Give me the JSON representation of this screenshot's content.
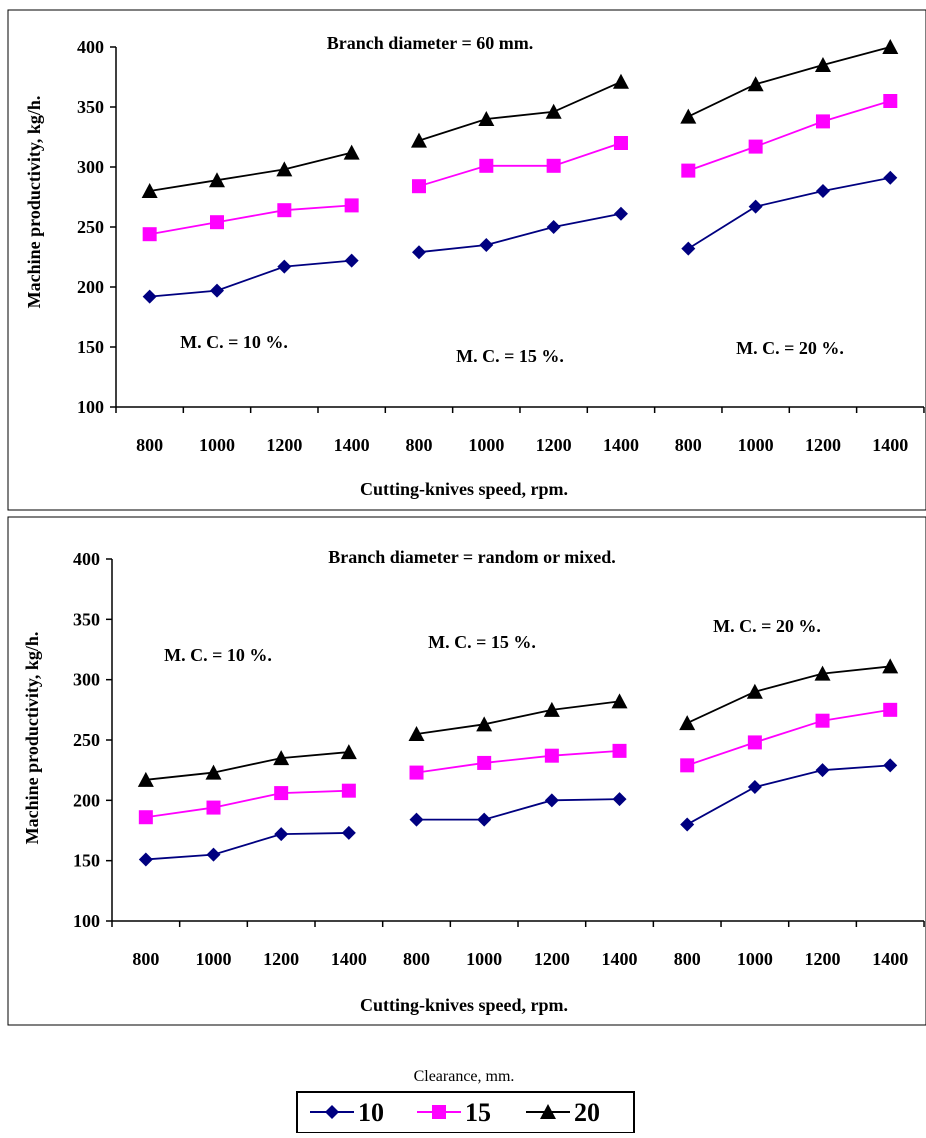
{
  "chart_data": [
    {
      "type": "line",
      "title": "Branch diameter = 60 mm.",
      "xlabel": "Cutting-knives speed, rpm.",
      "ylabel": "Machine productivity, kg/h.",
      "ylim": [
        100,
        400
      ],
      "yticks": [
        100,
        150,
        200,
        250,
        300,
        350,
        400
      ],
      "x_tick_labels": [
        "800",
        "1000",
        "1200",
        "1400",
        "800",
        "1000",
        "1200",
        "1400",
        "800",
        "1000",
        "1200",
        "1400"
      ],
      "groups": [
        {
          "label": "M. C. = 10 %.",
          "x": [
            800,
            1000,
            1200,
            1400
          ],
          "series": [
            {
              "name": "10",
              "values": [
                192,
                197,
                217,
                222
              ]
            },
            {
              "name": "15",
              "values": [
                244,
                254,
                264,
                268
              ]
            },
            {
              "name": "20",
              "values": [
                280,
                289,
                298,
                312
              ]
            }
          ]
        },
        {
          "label": "M. C. = 15 %.",
          "x": [
            800,
            1000,
            1200,
            1400
          ],
          "series": [
            {
              "name": "10",
              "values": [
                229,
                235,
                250,
                261
              ]
            },
            {
              "name": "15",
              "values": [
                284,
                301,
                301,
                320
              ]
            },
            {
              "name": "20",
              "values": [
                322,
                340,
                346,
                371
              ]
            }
          ]
        },
        {
          "label": "M. C. = 20 %.",
          "x": [
            800,
            1000,
            1200,
            1400
          ],
          "series": [
            {
              "name": "10",
              "values": [
                232,
                267,
                280,
                291
              ]
            },
            {
              "name": "15",
              "values": [
                297,
                317,
                338,
                355
              ]
            },
            {
              "name": "20",
              "values": [
                342,
                369,
                385,
                400
              ]
            }
          ]
        }
      ],
      "grid": false
    },
    {
      "type": "line",
      "title": "Branch diameter = random or mixed.",
      "xlabel": "Cutting-knives speed, rpm.",
      "ylabel": "Machine productivity, kg/h.",
      "ylim": [
        100,
        400
      ],
      "yticks": [
        100,
        150,
        200,
        250,
        300,
        350,
        400
      ],
      "x_tick_labels": [
        "800",
        "1000",
        "1200",
        "1400",
        "800",
        "1000",
        "1200",
        "1400",
        "800",
        "1000",
        "1200",
        "1400"
      ],
      "groups": [
        {
          "label": "M. C. = 10 %.",
          "x": [
            800,
            1000,
            1200,
            1400
          ],
          "series": [
            {
              "name": "10",
              "values": [
                151,
                155,
                172,
                173
              ]
            },
            {
              "name": "15",
              "values": [
                186,
                194,
                206,
                208
              ]
            },
            {
              "name": "20",
              "values": [
                217,
                223,
                235,
                240
              ]
            }
          ]
        },
        {
          "label": "M. C. = 15 %.",
          "x": [
            800,
            1000,
            1200,
            1400
          ],
          "series": [
            {
              "name": "10",
              "values": [
                184,
                184,
                200,
                201
              ]
            },
            {
              "name": "15",
              "values": [
                223,
                231,
                237,
                241
              ]
            },
            {
              "name": "20",
              "values": [
                255,
                263,
                275,
                282
              ]
            }
          ]
        },
        {
          "label": "M. C. = 20 %.",
          "x": [
            800,
            1000,
            1200,
            1400
          ],
          "series": [
            {
              "name": "10",
              "values": [
                180,
                211,
                225,
                229
              ]
            },
            {
              "name": "15",
              "values": [
                229,
                248,
                266,
                275
              ]
            },
            {
              "name": "20",
              "values": [
                264,
                290,
                305,
                311
              ]
            }
          ]
        }
      ],
      "grid": false
    }
  ],
  "legend": {
    "title": "Clearance, mm.",
    "placement": "bottom-center",
    "entries": [
      "10",
      "15",
      "20"
    ]
  },
  "styles": {
    "colors": {
      "10": "#000080",
      "15": "#ff00ff",
      "20": "#000000"
    },
    "markers": {
      "10": "diamond",
      "15": "square",
      "20": "triangle"
    }
  }
}
